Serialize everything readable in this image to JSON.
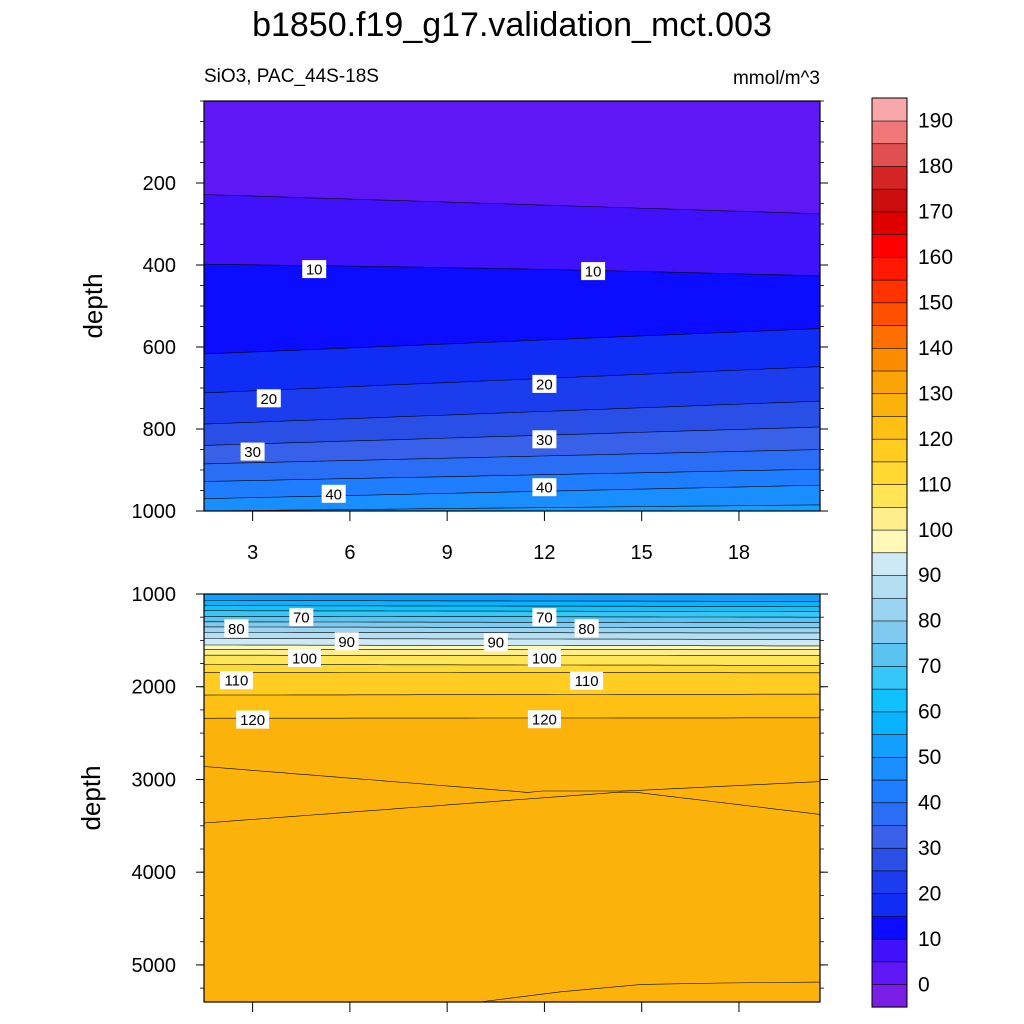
{
  "chart_data": {
    "title": "b1850.f19_g17.validation_mct.003",
    "left_subtitle": "SiO3, PAC_44S-18S",
    "right_subtitle": "mmol/m^3",
    "type": "contour",
    "x_ticks": [
      "3",
      "6",
      "9",
      "12",
      "15",
      "18"
    ],
    "x_tick_values": [
      3,
      6,
      9,
      12,
      15,
      18
    ],
    "xlim": [
      1.5,
      20.5
    ],
    "panels": [
      {
        "name": "upper",
        "ylabel": "depth",
        "ylim": [
          0,
          1000
        ],
        "y_ticks": [
          "200",
          "400",
          "600",
          "800",
          "1000"
        ],
        "y_tick_values": [
          200,
          400,
          600,
          800,
          1000
        ],
        "x_ticks_labeled": true,
        "contour_labels": [
          {
            "text": "10",
            "x": 4.9,
            "depth": 410
          },
          {
            "text": "10",
            "x": 13.5,
            "depth": 415
          },
          {
            "text": "20",
            "x": 12.0,
            "depth": 690
          },
          {
            "text": "20",
            "x": 3.5,
            "depth": 725
          },
          {
            "text": "30",
            "x": 12.0,
            "depth": 825
          },
          {
            "text": "30",
            "x": 3.0,
            "depth": 855
          },
          {
            "text": "40",
            "x": 12.0,
            "depth": 942
          },
          {
            "text": "40",
            "x": 5.5,
            "depth": 958
          }
        ]
      },
      {
        "name": "lower",
        "ylabel": "depth",
        "ylim": [
          1000,
          5400
        ],
        "y_ticks": [
          "1000",
          "2000",
          "3000",
          "4000",
          "5000"
        ],
        "y_tick_values": [
          1000,
          2000,
          3000,
          4000,
          5000
        ],
        "x_ticks_labeled": false,
        "contour_labels": [
          {
            "text": "70",
            "x": 4.5,
            "depth": 1250
          },
          {
            "text": "70",
            "x": 12.0,
            "depth": 1250
          },
          {
            "text": "80",
            "x": 2.5,
            "depth": 1370
          },
          {
            "text": "80",
            "x": 13.3,
            "depth": 1370
          },
          {
            "text": "90",
            "x": 5.9,
            "depth": 1510
          },
          {
            "text": "90",
            "x": 10.5,
            "depth": 1520
          },
          {
            "text": "100",
            "x": 4.6,
            "depth": 1690
          },
          {
            "text": "100",
            "x": 12.0,
            "depth": 1690
          },
          {
            "text": "110",
            "x": 2.5,
            "depth": 1930
          },
          {
            "text": "110",
            "x": 13.3,
            "depth": 1935
          },
          {
            "text": "120",
            "x": 3.0,
            "depth": 2355
          },
          {
            "text": "120",
            "x": 12.0,
            "depth": 2350
          }
        ]
      }
    ],
    "colorbar": {
      "labels": [
        "0",
        "10",
        "20",
        "30",
        "40",
        "50",
        "60",
        "70",
        "80",
        "90",
        "100",
        "110",
        "120",
        "130",
        "140",
        "150",
        "160",
        "170",
        "180",
        "190"
      ],
      "levels": [
        0,
        5,
        10,
        15,
        20,
        25,
        30,
        35,
        40,
        45,
        50,
        55,
        60,
        65,
        70,
        75,
        80,
        85,
        90,
        95,
        100,
        105,
        110,
        115,
        120,
        125,
        130,
        135,
        140,
        145,
        150,
        155,
        160,
        165,
        170,
        175,
        180,
        185,
        190,
        195
      ],
      "colors": [
        "#7a1ee6",
        "#5f17f5",
        "#3f12fb",
        "#0c0cff",
        "#0f2df5",
        "#1c3ded",
        "#2a4fe6",
        "#3860e8",
        "#2a6ef5",
        "#1f7dff",
        "#198eff",
        "#12a0ff",
        "#0ab3ff",
        "#10c2fb",
        "#35c7f7",
        "#5bc3f0",
        "#7fcaee",
        "#9ad4f0",
        "#b4dff3",
        "#cde9f5",
        "#fff8b6",
        "#ffef8c",
        "#ffe455",
        "#ffd932",
        "#ffcc22",
        "#fec013",
        "#fbb30c",
        "#fba407",
        "#fb8c00",
        "#ff6e00",
        "#ff5000",
        "#ff3200",
        "#ff1900",
        "#ff0000",
        "#e00000",
        "#cc0d0d",
        "#d42424",
        "#e05050",
        "#f07878",
        "#f8a8a8"
      ]
    }
  }
}
